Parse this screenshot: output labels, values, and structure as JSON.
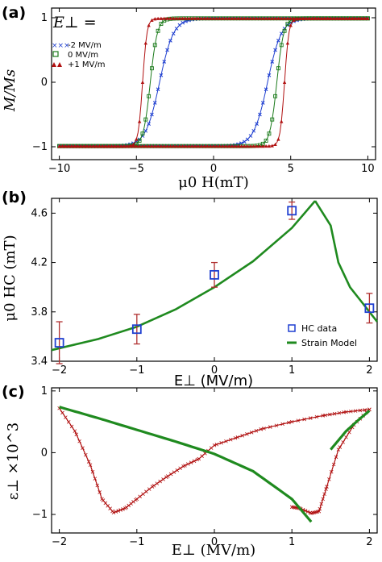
{
  "panels": {
    "a": "(a)",
    "b": "(b)",
    "c": "(c)"
  },
  "colors": {
    "blue": "#1f3fd0",
    "green": "#1a7a1a",
    "red": "#b01010",
    "model_green": "#1f8a1f",
    "error_bar": "#b03030"
  },
  "chart_data": [
    {
      "type": "line",
      "panel": "a",
      "xlabel": "μ0 H(mT)",
      "ylabel": "M/Ms",
      "xlim": [
        -10.5,
        10.5
      ],
      "ylim": [
        -1.2,
        1.15
      ],
      "xticks": [
        -10,
        -5,
        0,
        5,
        10
      ],
      "yticks": [
        -1,
        0,
        1
      ],
      "legend_title": "E⊥ =",
      "legend_position": "top-left",
      "series": [
        {
          "name": "-2 MV/m",
          "color": "#1f3fd0",
          "marker": "x",
          "coercive": 3.5,
          "width": 0.9
        },
        {
          "name": "0 MV/m",
          "color": "#1a7a1a",
          "marker": "square",
          "coercive": 4.1,
          "width": 0.45
        },
        {
          "name": "+1 MV/m",
          "color": "#b01010",
          "marker": "triangle",
          "coercive": 4.6,
          "width": 0.28
        }
      ]
    },
    {
      "type": "scatter",
      "panel": "b",
      "xlabel": "E⊥ (MV/m)",
      "ylabel": "μ0 HC (mT)",
      "xlim": [
        -2.1,
        2.1
      ],
      "ylim": [
        3.4,
        4.72
      ],
      "xticks": [
        -2,
        -1,
        0,
        1,
        2
      ],
      "yticks": [
        3.4,
        3.8,
        4.2,
        4.6
      ],
      "legend_position": "bottom-right",
      "series": [
        {
          "name": "HC data",
          "x": [
            -2,
            -1,
            0,
            1,
            2
          ],
          "y": [
            3.55,
            3.66,
            4.1,
            4.62,
            3.83
          ],
          "err": [
            0.17,
            0.12,
            0.1,
            0.07,
            0.12
          ]
        },
        {
          "name": "Strain Model",
          "x": [
            -2.1,
            -1.5,
            -1.0,
            -0.5,
            0,
            0.5,
            1.0,
            1.3,
            1.5,
            1.6,
            1.75,
            1.9,
            2.0,
            2.1
          ],
          "y": [
            3.49,
            3.58,
            3.68,
            3.82,
            4.0,
            4.21,
            4.48,
            4.7,
            4.5,
            4.2,
            4.0,
            3.88,
            3.8,
            3.72
          ]
        }
      ]
    },
    {
      "type": "line",
      "panel": "c",
      "xlabel": "E⊥ (MV/m)",
      "ylabel": "ε⊥ ×10^3",
      "xlim": [
        -2.1,
        2.1
      ],
      "ylim": [
        -1.3,
        1.05
      ],
      "xticks": [
        -2,
        -1,
        0,
        1,
        2
      ],
      "yticks": [
        -1,
        0,
        1
      ],
      "series": [
        {
          "color": "#b01010",
          "x": [
            -2.0,
            -1.8,
            -1.6,
            -1.45,
            -1.3,
            -1.15,
            -1.0,
            -0.8,
            -0.6,
            -0.4,
            -0.2,
            0.0,
            0.3,
            0.6,
            1.0,
            1.4,
            1.7,
            2.0
          ],
          "y": [
            0.72,
            0.35,
            -0.2,
            -0.75,
            -0.97,
            -0.9,
            -0.75,
            -0.55,
            -0.38,
            -0.22,
            -0.1,
            0.12,
            0.25,
            0.38,
            0.5,
            0.6,
            0.66,
            0.7
          ]
        },
        {
          "color": "#b01010",
          "x": [
            2.0,
            1.8,
            1.6,
            1.45,
            1.35,
            1.25,
            1.1,
            1.0
          ],
          "y": [
            0.7,
            0.45,
            0.05,
            -0.55,
            -0.95,
            -0.98,
            -0.9,
            -0.88
          ]
        },
        {
          "color": "#1f8a1f",
          "x": [
            -2.0,
            -1.5,
            -1.0,
            -0.5,
            0.0,
            0.5,
            1.0,
            1.25
          ],
          "y": [
            0.74,
            0.56,
            0.37,
            0.18,
            -0.02,
            -0.3,
            -0.75,
            -1.12
          ]
        },
        {
          "color": "#1f8a1f",
          "x": [
            1.5,
            1.7,
            1.85,
            2.0
          ],
          "y": [
            0.05,
            0.35,
            0.52,
            0.68
          ]
        }
      ]
    }
  ]
}
